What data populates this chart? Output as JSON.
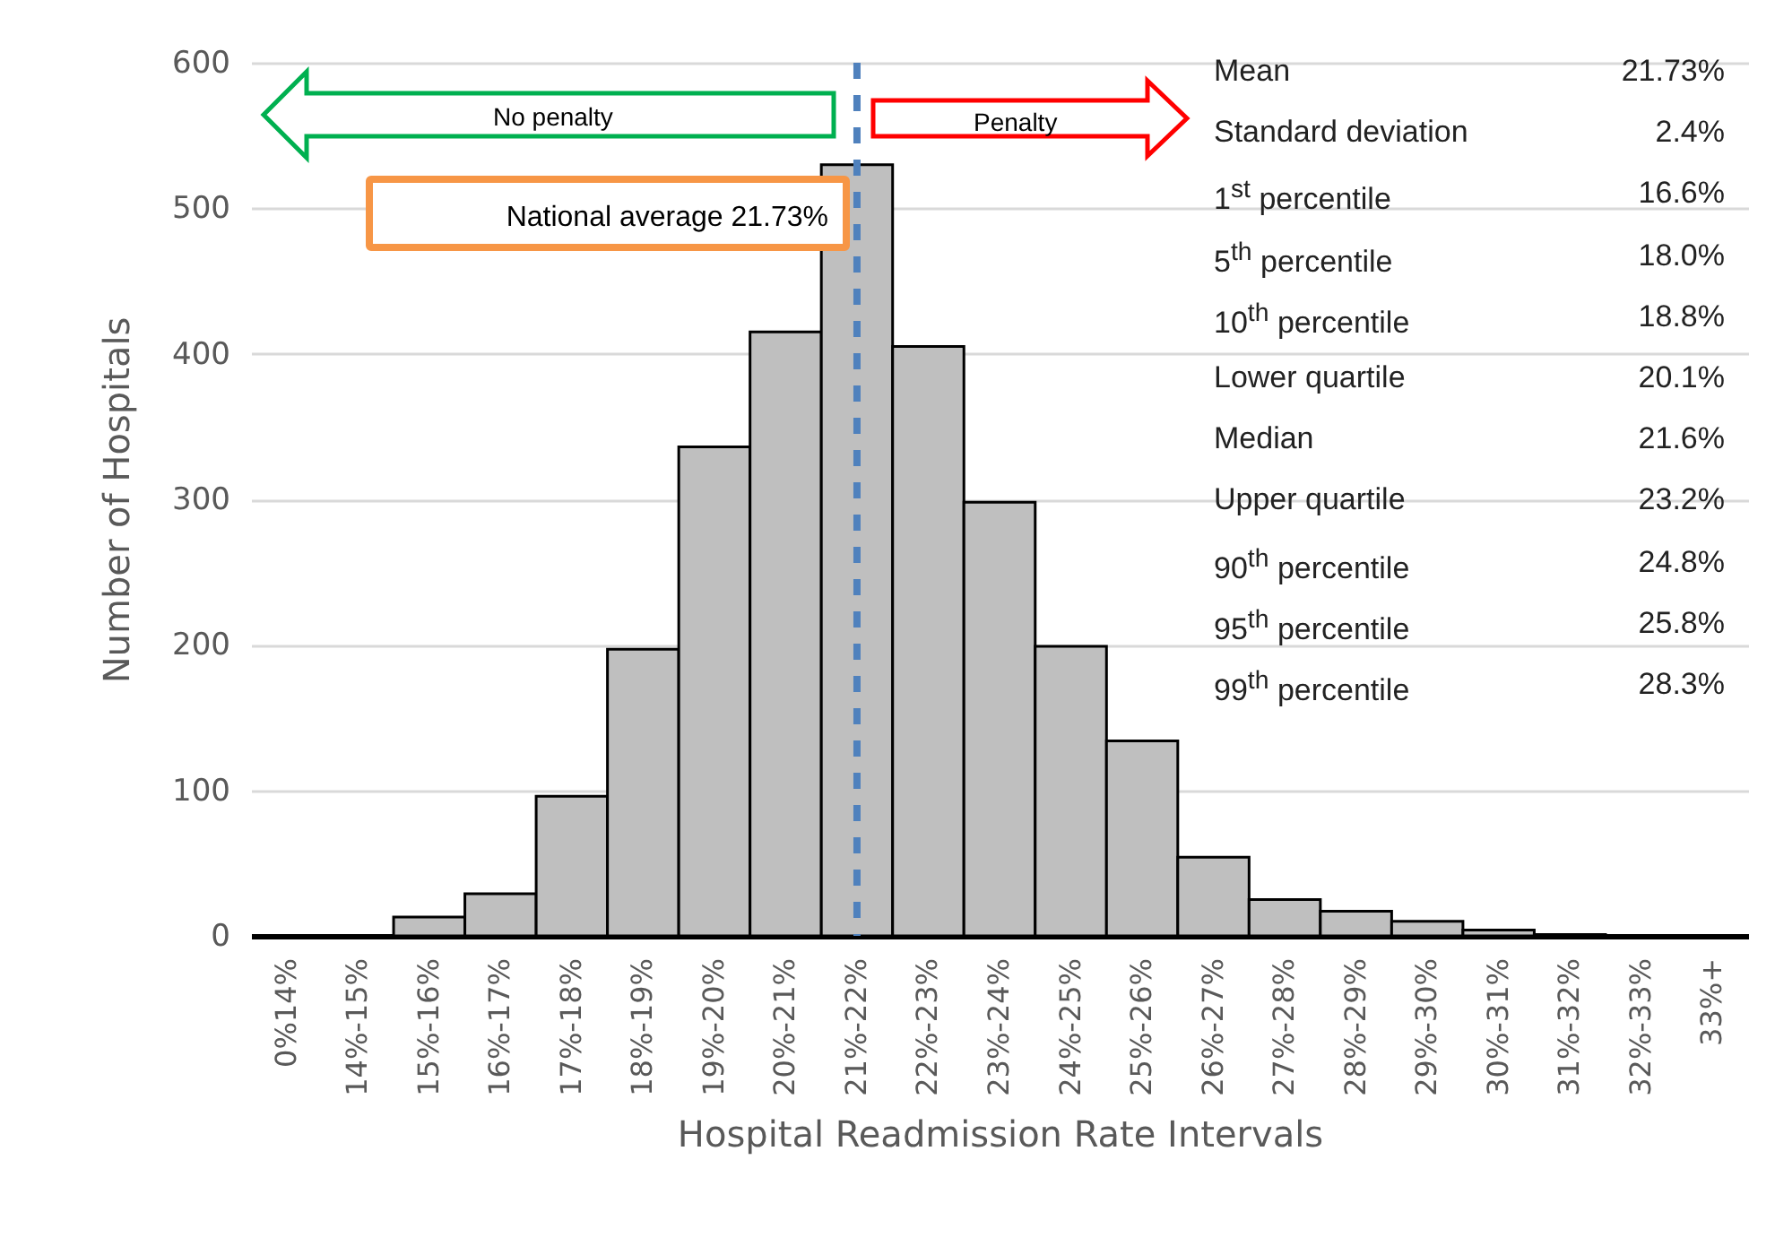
{
  "chart_data": {
    "type": "bar",
    "xlabel": "Hospital Readmission Rate Intervals",
    "ylabel": "Number of Hospitals",
    "categories": [
      "0%14%",
      "14%-15%",
      "15%-16%",
      "16%-17%",
      "17%-18%",
      "18%-19%",
      "19%-20%",
      "20%-21%",
      "21%-22%",
      "22%-23%",
      "23%-24%",
      "24%-25%",
      "25%-26%",
      "26%-27%",
      "27%-28%",
      "28%-29%",
      "29%-30%",
      "30%-31%",
      "31%-32%",
      "32%-33%",
      "33%+"
    ],
    "values": [
      0,
      0,
      13,
      29,
      96,
      197,
      336,
      415,
      530,
      405,
      298,
      199,
      134,
      54,
      25,
      17,
      10,
      4,
      1,
      0,
      0
    ],
    "color": "#bfbfbf",
    "ylim": [
      0,
      600
    ],
    "yticks": [
      0,
      100,
      200,
      300,
      400,
      500,
      600
    ],
    "grid": "y",
    "ref_lines": [
      {
        "axis": "x",
        "value": "21%-22%",
        "label": "National average 21.73%",
        "color": "#4f81bd",
        "line_style": "dashed"
      }
    ],
    "annotations": [
      "No penalty",
      "Penalty",
      "Mean",
      "21.73%",
      "Standard deviation",
      "2.4%",
      "1$^{st}$ percentile",
      "16.6%",
      "5$^{th}$ percentile",
      "18.0%",
      "10$^{th}$ percentile",
      "18.8%",
      "Lower quartile",
      "20.1%",
      "Median",
      "21.6%",
      "Upper quartile",
      "23.2%",
      "90$^{th}$ percentile",
      "24.8%",
      "95$^{th}$ percentile",
      "25.8%",
      "99$^{th}$ percentile",
      "28.3%"
    ]
  }
}
